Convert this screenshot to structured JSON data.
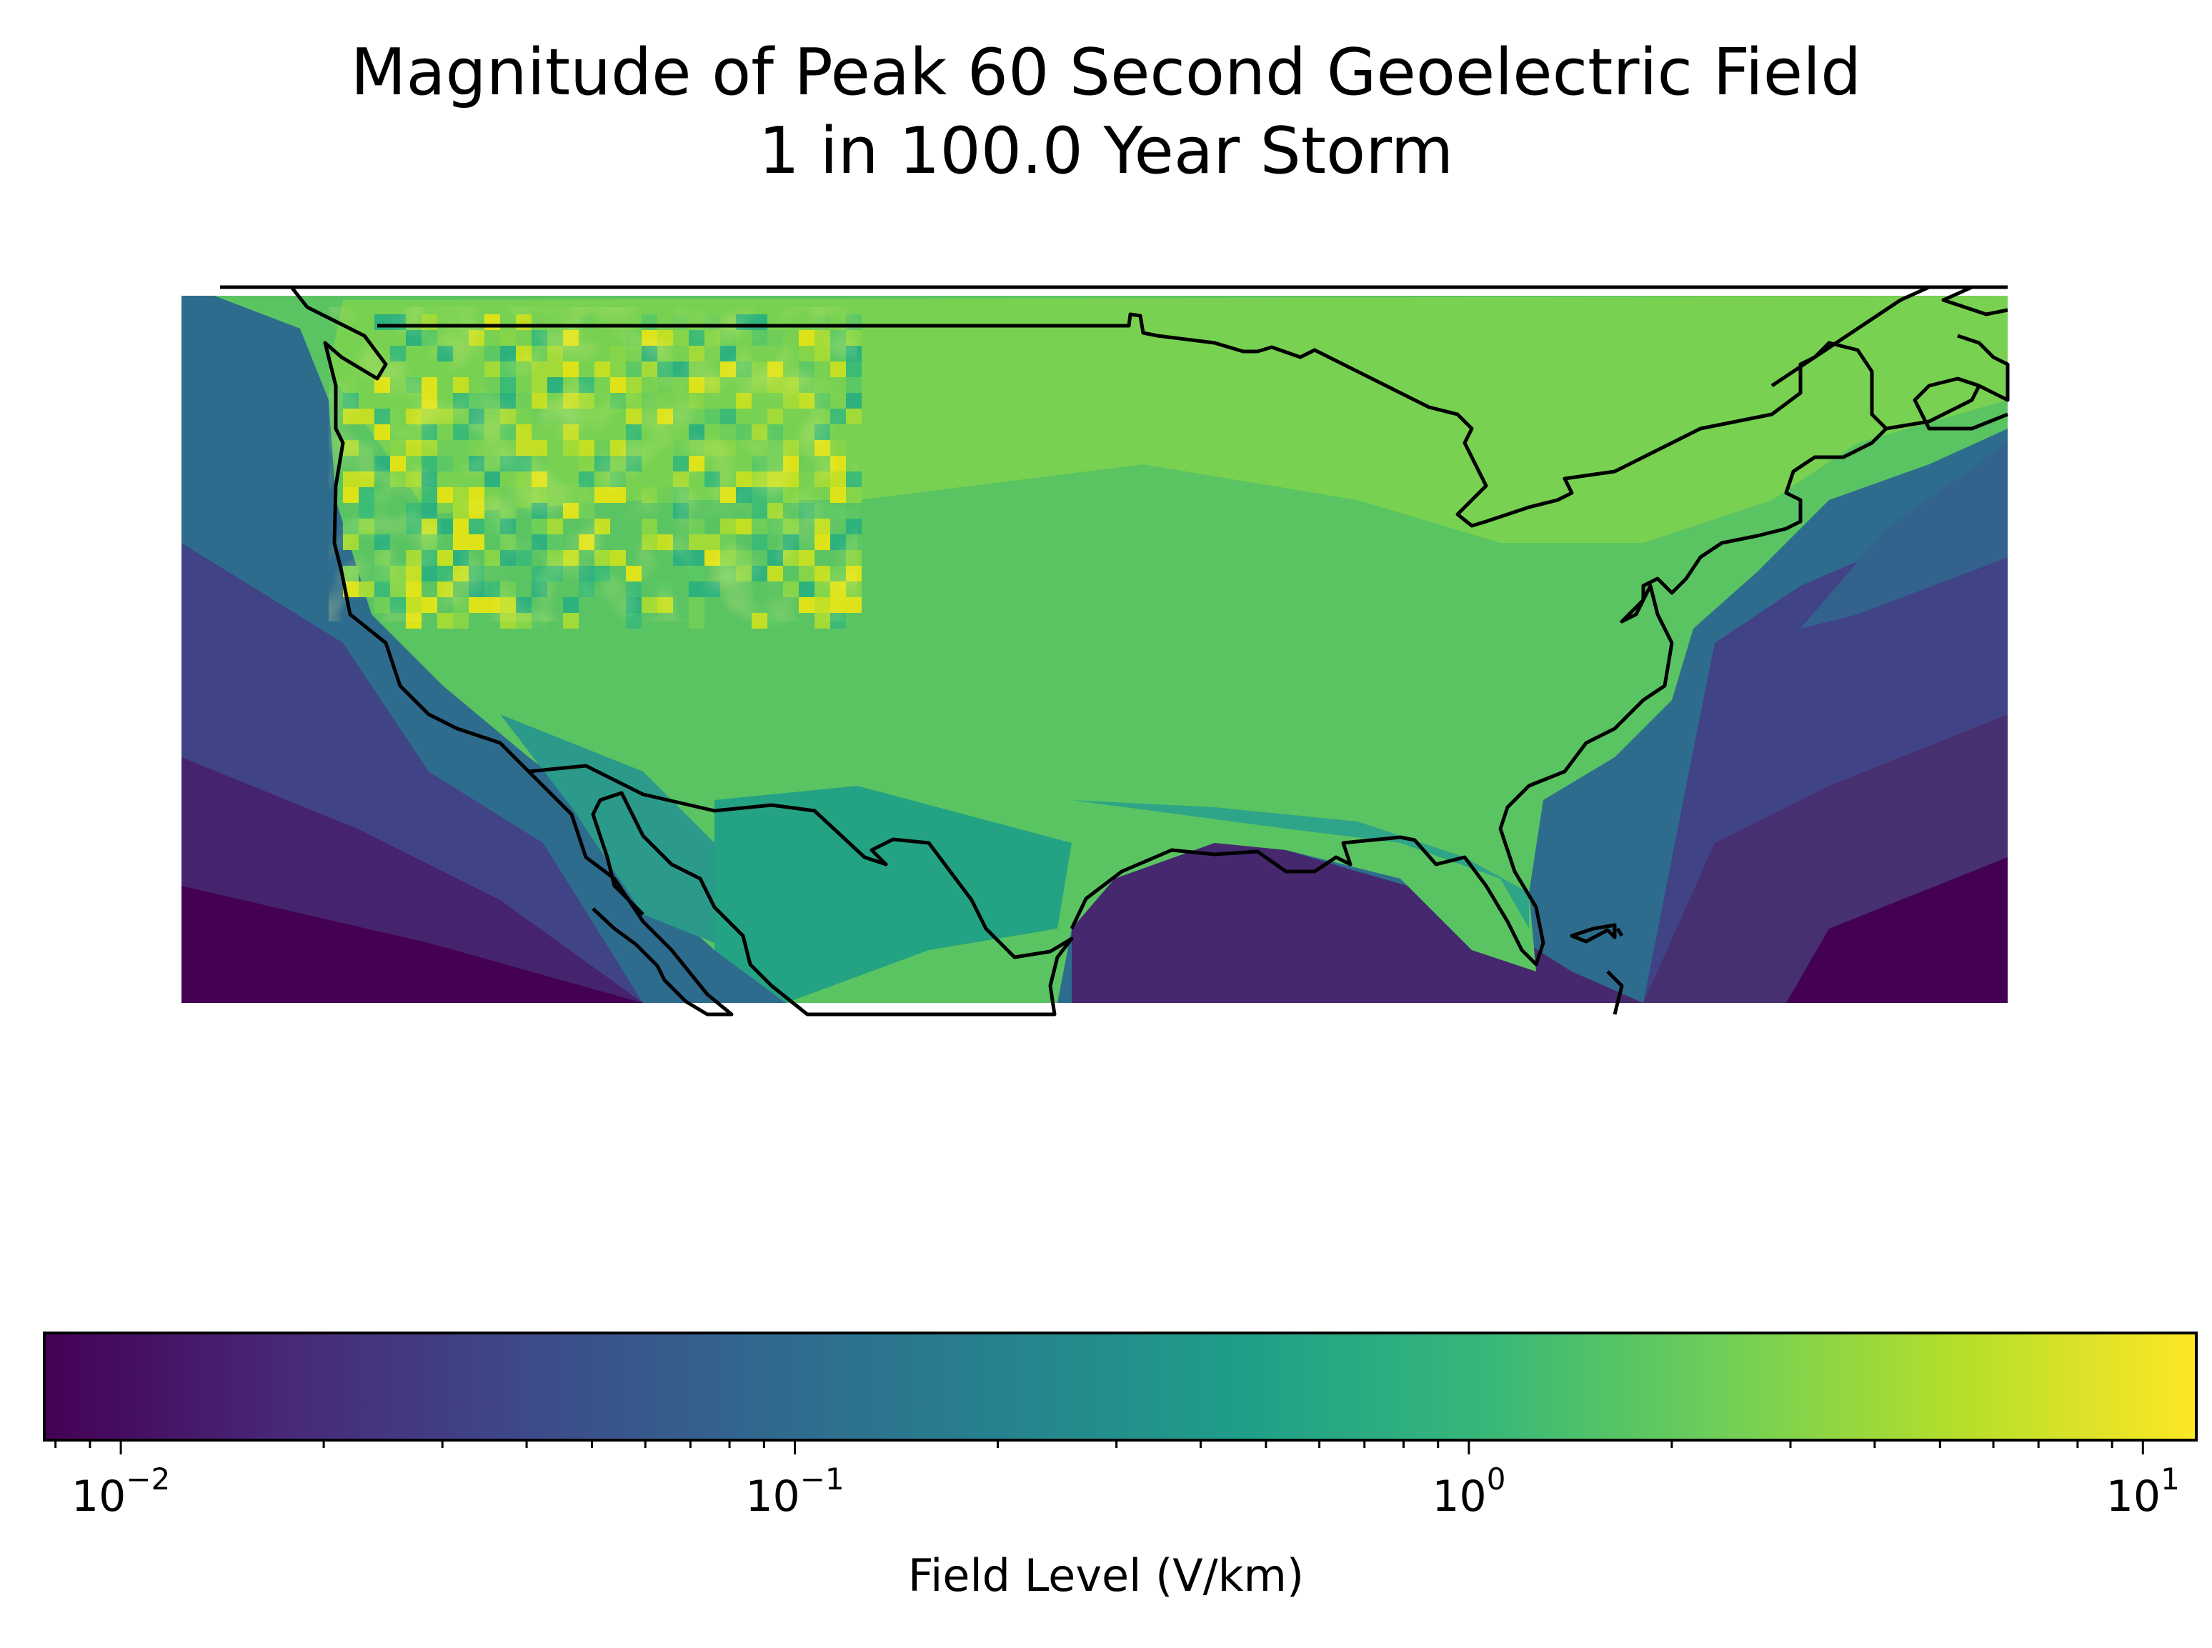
{
  "map": {
    "title_line1": "Magnitude of Peak 60 Second Geoelectric Field",
    "title_line2": "1 in 100.0 Year Storm",
    "colormap": "viridis",
    "colormap_stops": [
      "#440154",
      "#482878",
      "#3e4989",
      "#31688e",
      "#26828e",
      "#1f9e89",
      "#35b779",
      "#6ece58",
      "#b5de2b",
      "#fde725"
    ],
    "coastline_color": "#000000"
  },
  "colorbar": {
    "label": "Field Level (V/km)",
    "scale": "log",
    "range": [
      0.0077,
      12
    ],
    "ticks": [
      {
        "base": "10",
        "exp": "−2",
        "value": 0.01
      },
      {
        "base": "10",
        "exp": "−1",
        "value": 0.1
      },
      {
        "base": "10",
        "exp": "0",
        "value": 1
      },
      {
        "base": "10",
        "exp": "1",
        "value": 10
      }
    ]
  }
}
